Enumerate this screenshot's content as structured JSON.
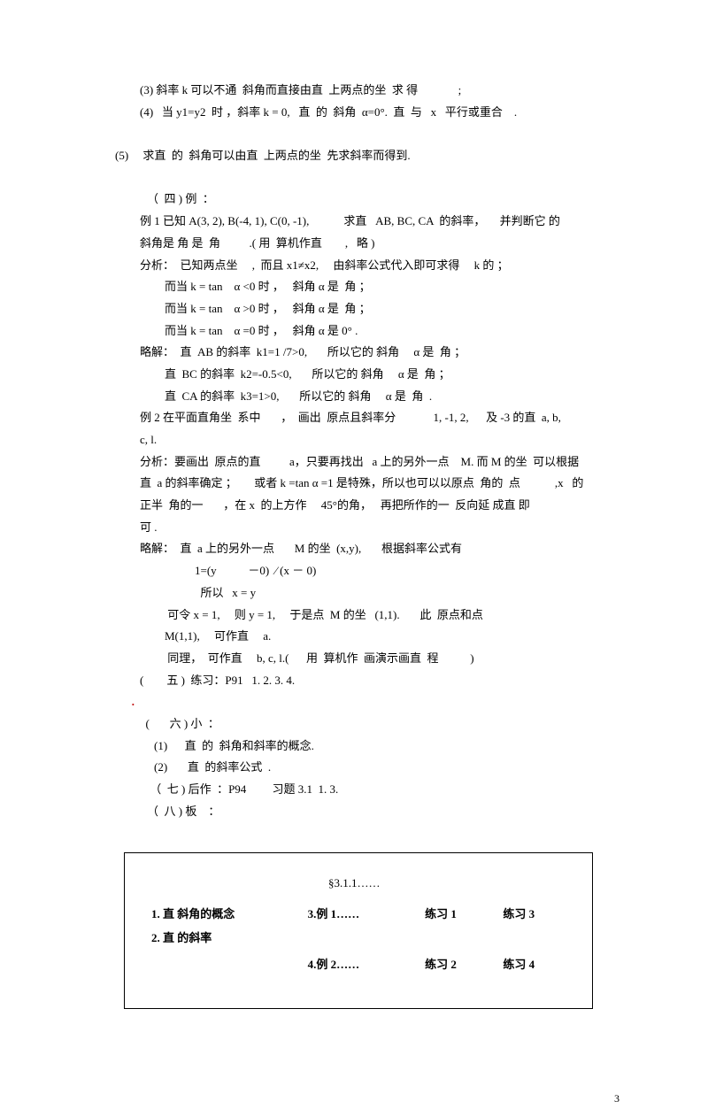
{
  "lines": [
    {
      "cls": "indent2",
      "text": "(3) 斜率 k 可以不通  斜角而直接由直  上两点的坐  求 得              ;"
    },
    {
      "cls": "indent2",
      "text": "(4)   当 y1=y2  时 ，斜率 k = 0,   直  的  斜角  α=0°.  直  与   x   平行或重合    ."
    },
    {
      "cls": "indent1",
      "text": " "
    },
    {
      "cls": "indent1",
      "text": "(5)     求直  的  斜角可以由直  上两点的坐  先求斜率而得到."
    },
    {
      "cls": "indent1",
      "text": " "
    },
    {
      "cls": "indent3",
      "text": "（  四 ) 例  ："
    },
    {
      "cls": "indent2",
      "text": "例 1 已知 A(3, 2), B(-4, 1), C(0, -1),            求直   AB, BC, CA  的斜率，     并判断它 的"
    },
    {
      "cls": "indent2",
      "text": "斜角是 角 是  角          .( 用  算机作直        ,   略 )"
    },
    {
      "cls": "indent2",
      "text": "分析：  已知两点坐     ,  而且 x1≠x2,     由斜率公式代入即可求得     k 的 ；"
    },
    {
      "cls": "indent4",
      "text": "而当 k = tan    α <0 时 ，   斜角 α 是  角 ；"
    },
    {
      "cls": "indent4",
      "text": "而当 k = tan    α >0 时 ，   斜角 α 是  角 ；"
    },
    {
      "cls": "indent4",
      "text": "而当 k = tan    α =0 时 ，   斜角 α 是 0° ."
    },
    {
      "cls": "indent2",
      "text": "略解：  直  AB 的斜率  k1=1 /7>0,       所以它的 斜角     α 是  角 ；"
    },
    {
      "cls": "indent4",
      "text": "直  BC 的斜率  k2=-0.5<0,       所以它的 斜角     α 是  角 ；"
    },
    {
      "cls": "indent4",
      "text": "直  CA 的斜率  k3=1>0,       所以它的 斜角     α 是  角  ."
    },
    {
      "cls": "indent2",
      "text": "例 2 在平面直角坐  系中       ，  画出  原点且斜率分             1, -1, 2,      及 -3 的直  a, b,"
    },
    {
      "cls": "indent2",
      "text": "c, l."
    },
    {
      "cls": "indent2",
      "text": "分析：要画出  原点的直          a，只要再找出   a 上的另外一点    M. 而 M 的坐  可以根据"
    },
    {
      "cls": "indent2",
      "text": "直  a 的斜率确定 ；      或者 k =tan α =1 是特殊，所以也可以以原点  角的  点            ,x   的"
    },
    {
      "cls": "indent2",
      "text": "正半  角的一       ，在 x  的上方作     45°的角，   再把所作的一  反向延 成直 即"
    },
    {
      "cls": "indent2",
      "text": "可 ."
    },
    {
      "cls": "indent2",
      "text": "略解：  直  a 上的另外一点       M 的坐  (x,y),       根据斜率公式有"
    },
    {
      "cls": "indent6",
      "text": "1=(y           －0)  ∕ (x － 0)"
    },
    {
      "cls": "indent6",
      "text": "  所以   x = y"
    },
    {
      "cls": "indent4",
      "text": " 可令 x = 1,     则 y = 1,     于是点  M 的坐   (1,1).       此  原点和点"
    },
    {
      "cls": "indent4",
      "text": "M(1,1),     可作直     a."
    },
    {
      "cls": "indent4",
      "text": " 同理，  可作直     b, c, l.(      用  算机作  画演示画直  程           )"
    },
    {
      "cls": "indent2",
      "text": "(        五 )  练习：P91   1. 2. 3. 4."
    },
    {
      "cls": "indent8 red",
      "text": " ．"
    },
    {
      "cls": "indent2",
      "text": "  (       六 ) 小  ："
    },
    {
      "cls": "indent7",
      "text": "(1)      直  的  斜角和斜率的概念."
    },
    {
      "cls": "indent7",
      "text": "(2)       直  的斜率公式  ."
    },
    {
      "cls": "indent3",
      "text": " （  七 ) 后作  ：P94         习题 3.1  1. 3."
    },
    {
      "cls": "indent3",
      "text": "（  八 ) 板    ："
    }
  ],
  "table": {
    "top": "§3.1.1……",
    "rows": [
      [
        "1. 直  斜角的概念",
        "3.例 1……",
        "练习 1",
        "练习 3"
      ],
      [
        "2.  直  的斜率",
        "",
        "",
        ""
      ],
      [
        "",
        "4.例 2……",
        "练习 2",
        "练习 4"
      ]
    ],
    "border_color": "#000000",
    "font_weight": "bold"
  },
  "page_number": "3",
  "colors": {
    "background": "#ffffff",
    "text": "#000000",
    "accent_red": "#c00000"
  },
  "typography": {
    "body_fontsize_pt": 10,
    "line_height": 1.9,
    "font_family": "SimSun"
  }
}
